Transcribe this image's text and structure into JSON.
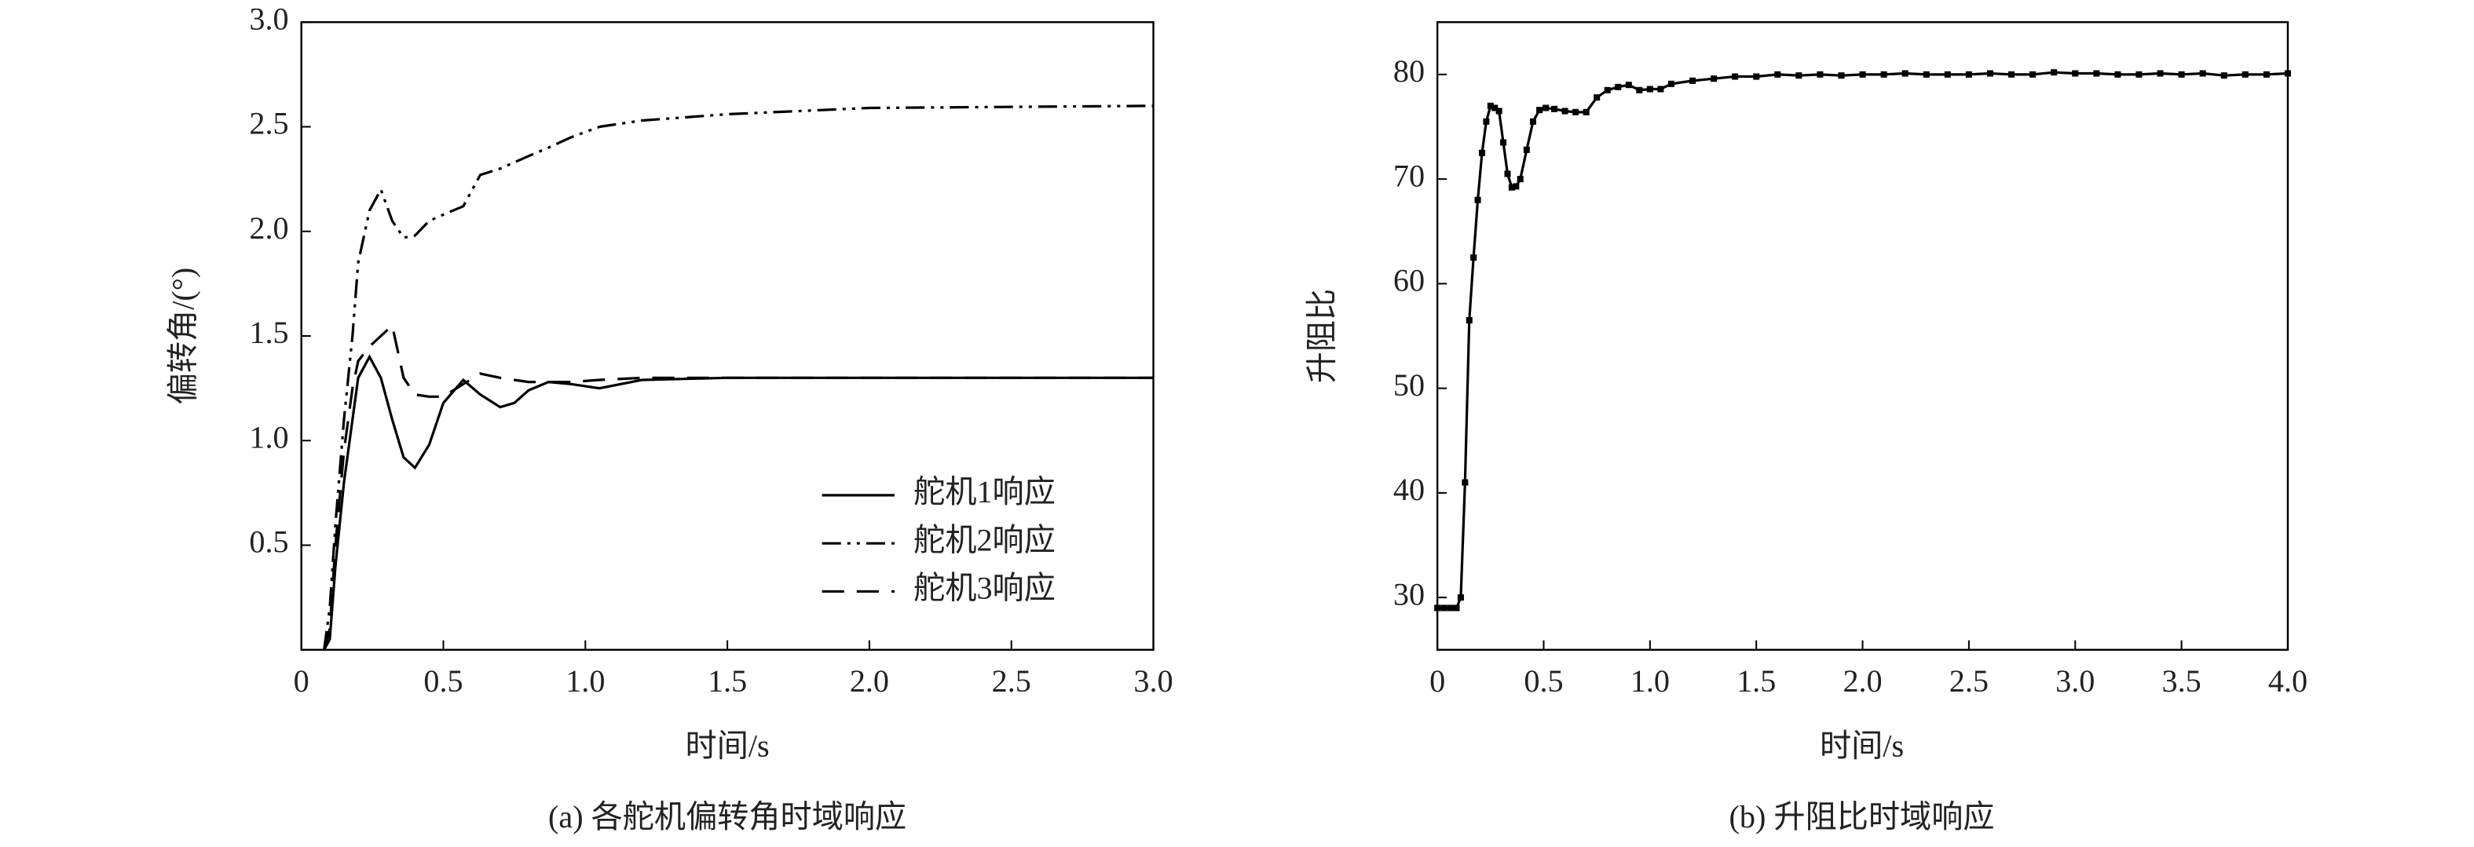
{
  "chart_data": [
    {
      "type": "line",
      "caption": "(a) 各舵机偏转角时域响应",
      "x_label": "时间/s",
      "y_label": "偏转角/(°)",
      "xlim": [
        0,
        3
      ],
      "ylim": [
        0,
        3
      ],
      "xticks": [
        0,
        0.5,
        {
          "value": 1,
          "label": "1.0"
        },
        1.5,
        {
          "value": 2,
          "label": "2.0"
        },
        2.5,
        {
          "value": 3,
          "label": "3.0"
        }
      ],
      "yticks": [
        0.5,
        {
          "value": 1,
          "label": "1.0"
        },
        1.5,
        {
          "value": 2,
          "label": "2.0"
        },
        2.5,
        {
          "value": 3,
          "label": "3.0"
        }
      ],
      "legend": "lower right",
      "x": [
        0.08,
        0.1,
        0.12,
        0.15,
        0.18,
        0.2,
        0.24,
        0.28,
        0.32,
        0.36,
        0.4,
        0.45,
        0.5,
        0.57,
        0.63,
        0.7,
        0.75,
        0.8,
        0.87,
        0.95,
        1.05,
        1.2,
        1.5,
        2.0,
        3.0
      ],
      "series": [
        {
          "name": "舵机1响应",
          "color": "#000000",
          "line_style": "solid",
          "values": [
            0,
            0.05,
            0.4,
            0.8,
            1.1,
            1.3,
            1.4,
            1.3,
            1.1,
            0.92,
            0.87,
            0.98,
            1.18,
            1.29,
            1.22,
            1.16,
            1.18,
            1.24,
            1.28,
            1.27,
            1.25,
            1.29,
            1.3,
            1.3,
            1.3
          ]
        },
        {
          "name": "舵机2响应",
          "color": "#000000",
          "line_style": "dash-dot-dot",
          "values": [
            0,
            0.2,
            0.6,
            1.1,
            1.5,
            1.85,
            2.1,
            2.2,
            2.05,
            1.97,
            1.98,
            2.05,
            2.08,
            2.12,
            2.27,
            2.3,
            2.33,
            2.36,
            2.4,
            2.45,
            2.5,
            2.53,
            2.56,
            2.59,
            2.6
          ]
        },
        {
          "name": "舵机3响应",
          "color": "#000000",
          "line_style": "dashed",
          "values": [
            0,
            0.1,
            0.5,
            0.95,
            1.25,
            1.38,
            1.45,
            1.5,
            1.55,
            1.3,
            1.22,
            1.21,
            1.21,
            1.27,
            1.32,
            1.3,
            1.29,
            1.28,
            1.28,
            1.28,
            1.29,
            1.3,
            1.3,
            1.3,
            1.3
          ]
        }
      ]
    },
    {
      "type": "line",
      "caption": "(b) 升阻比时域响应",
      "x_label": "时间/s",
      "y_label": "升阻比",
      "xlim": [
        0,
        4
      ],
      "ylim": [
        25,
        85
      ],
      "xticks": [
        0,
        0.5,
        {
          "value": 1,
          "label": "1.0"
        },
        1.5,
        {
          "value": 2,
          "label": "2.0"
        },
        2.5,
        {
          "value": 3,
          "label": "3.0"
        },
        3.5,
        {
          "value": 4,
          "label": "4.0"
        }
      ],
      "yticks": [
        30,
        40,
        50,
        60,
        70,
        80
      ],
      "markers": true,
      "x": [
        0,
        0.03,
        0.06,
        0.09,
        0.11,
        0.13,
        0.15,
        0.17,
        0.19,
        0.21,
        0.23,
        0.25,
        0.27,
        0.29,
        0.31,
        0.33,
        0.35,
        0.37,
        0.39,
        0.42,
        0.45,
        0.48,
        0.51,
        0.55,
        0.6,
        0.65,
        0.7,
        0.75,
        0.8,
        0.85,
        0.9,
        0.95,
        1.0,
        1.05,
        1.1,
        1.2,
        1.3,
        1.4,
        1.5,
        1.6,
        1.7,
        1.8,
        1.9,
        2.0,
        2.1,
        2.2,
        2.3,
        2.4,
        2.5,
        2.6,
        2.7,
        2.8,
        2.9,
        3.0,
        3.1,
        3.2,
        3.3,
        3.4,
        3.5,
        3.6,
        3.7,
        3.8,
        3.9,
        4.0
      ],
      "series": [
        {
          "name": null,
          "color": "#000000",
          "line_style": "solid",
          "values": [
            29,
            29,
            29,
            29,
            30,
            41,
            56.5,
            62.5,
            68,
            72.5,
            75.5,
            77,
            76.8,
            76.5,
            73.5,
            70.5,
            69.2,
            69.3,
            70,
            72.8,
            75.5,
            76.6,
            76.8,
            76.7,
            76.5,
            76.4,
            76.4,
            77.8,
            78.5,
            78.8,
            79,
            78.5,
            78.6,
            78.6,
            79.1,
            79.4,
            79.6,
            79.8,
            79.8,
            80,
            79.9,
            80,
            79.9,
            80,
            80,
            80.1,
            80,
            80,
            80,
            80.1,
            80,
            80,
            80.2,
            80.1,
            80.1,
            80,
            80,
            80.1,
            80,
            80.1,
            79.9,
            80,
            80,
            80.1
          ]
        }
      ]
    }
  ]
}
